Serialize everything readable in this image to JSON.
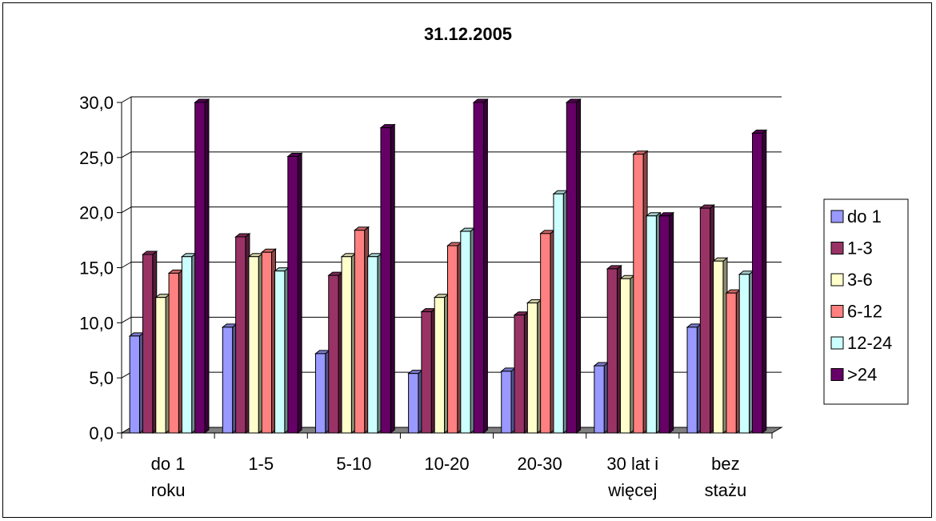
{
  "chart_data": {
    "type": "bar",
    "title": "31.12.2005",
    "xlabel": "",
    "ylabel": "",
    "ylim": [
      0,
      30
    ],
    "ytick_labels": [
      "0,0",
      "5,0",
      "10,0",
      "15,0",
      "20,0",
      "25,0",
      "30,0"
    ],
    "grid": true,
    "legend_position": "right",
    "categories": [
      [
        "do 1",
        "roku"
      ],
      [
        "1-5"
      ],
      [
        "5-10"
      ],
      [
        "10-20"
      ],
      [
        "20-30"
      ],
      [
        "30 lat i",
        "więcej"
      ],
      [
        "bez",
        "stażu"
      ]
    ],
    "series": [
      {
        "name": "do 1",
        "color": "#9999ff",
        "values": [
          8.8,
          9.6,
          7.2,
          5.4,
          5.6,
          6.1,
          9.6
        ]
      },
      {
        "name": "1-3",
        "color": "#993366",
        "values": [
          16.2,
          17.8,
          14.3,
          11.0,
          10.7,
          14.9,
          20.4
        ]
      },
      {
        "name": "3-6",
        "color": "#ffffcc",
        "values": [
          12.3,
          16.0,
          16.0,
          12.3,
          11.8,
          14.0,
          15.6
        ]
      },
      {
        "name": "6-12",
        "color": "#ff8080",
        "values": [
          14.5,
          16.4,
          18.4,
          17.0,
          18.1,
          25.3,
          12.7
        ]
      },
      {
        "name": "12-24",
        "color": "#ccffff",
        "values": [
          16.0,
          14.7,
          16.0,
          18.3,
          21.7,
          19.7,
          14.4
        ]
      },
      {
        "name": ">24",
        "color": "#660066",
        "values": [
          30.0,
          25.1,
          27.7,
          30.0,
          30.0,
          19.7,
          27.2
        ]
      }
    ]
  }
}
